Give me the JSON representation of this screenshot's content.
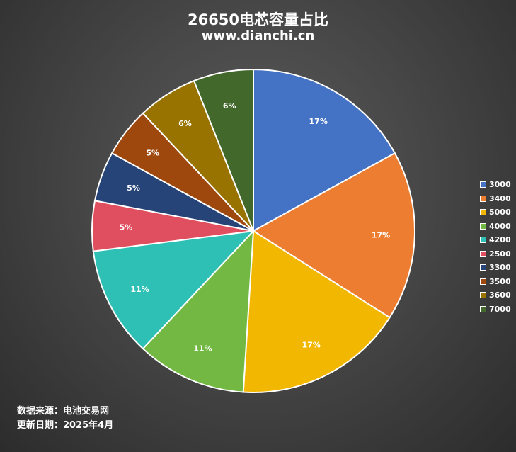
{
  "title": "26650电芯容量占比",
  "subtitle": "www.dianchi.cn",
  "chart_data": {
    "type": "pie",
    "categories": [
      "3000",
      "3400",
      "5000",
      "4000",
      "4200",
      "2500",
      "3300",
      "3500",
      "3600",
      "7000"
    ],
    "values": [
      17,
      17,
      17,
      11,
      11,
      5,
      5,
      5,
      6,
      6
    ],
    "labels": [
      "17%",
      "17%",
      "17%",
      "11%",
      "11%",
      "5%",
      "5%",
      "5%",
      "6%",
      "6%"
    ],
    "colors": [
      "#4472C4",
      "#ED7D31",
      "#F2B700",
      "#72B843",
      "#2EC0B4",
      "#E04F5F",
      "#264478",
      "#9E480E",
      "#997300",
      "#43682B"
    ],
    "legend": "right"
  },
  "source": {
    "line1": "数据来源：电池交易网",
    "line2": "更新日期：2025年4月"
  }
}
